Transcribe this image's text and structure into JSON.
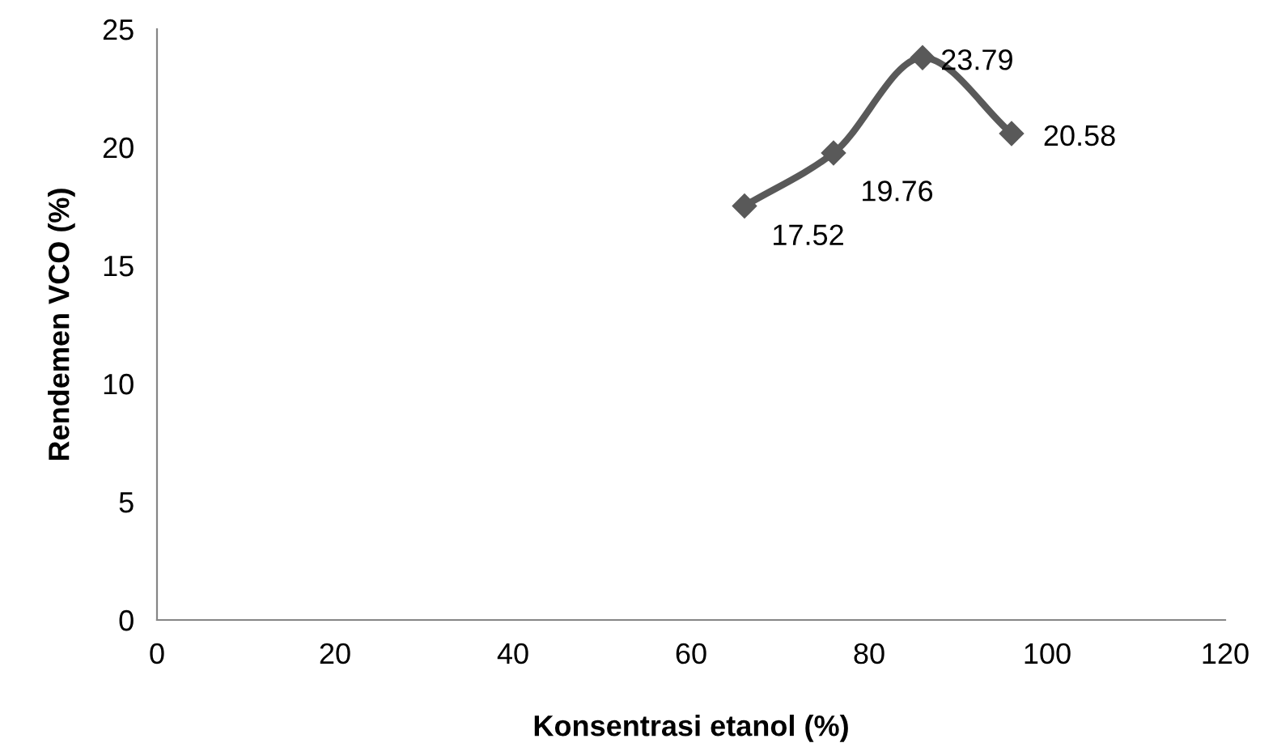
{
  "chart_data": {
    "type": "line",
    "xlabel": "Konsentrasi etanol (%)",
    "ylabel": "Rendemen VCO (%)",
    "x": [
      66,
      76,
      86,
      96
    ],
    "series": [
      {
        "color": "#595959",
        "values": [
          17.52,
          19.76,
          23.79,
          20.58
        ]
      }
    ],
    "xlim": [
      0,
      120
    ],
    "xticks": [
      0,
      20,
      40,
      60,
      80,
      100,
      120
    ],
    "ylim": [
      0,
      25
    ],
    "yticks": [
      0,
      5,
      10,
      15,
      20,
      25
    ],
    "grid": false,
    "marker": "diamond",
    "line_style": "solid",
    "data_labels": true
  }
}
